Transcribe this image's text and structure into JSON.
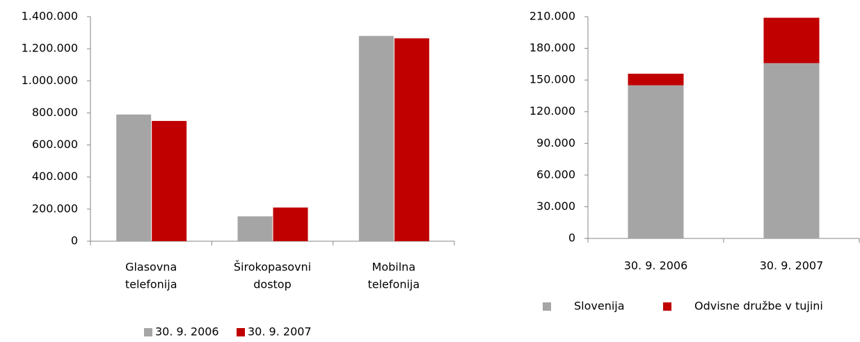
{
  "chart_data": [
    {
      "type": "bar",
      "categories": [
        [
          "Glasovna",
          "telefonija"
        ],
        [
          "Širokopasovni",
          "dostop"
        ],
        [
          "Mobilna",
          "telefonija"
        ]
      ],
      "series": [
        {
          "name": "30. 9. 2006",
          "color": "#a5a5a5",
          "values": [
            790000,
            155000,
            1280000
          ]
        },
        {
          "name": "30. 9. 2007",
          "color": "#c00000",
          "values": [
            750000,
            210000,
            1265000
          ]
        }
      ],
      "ylim": [
        0,
        1400000
      ],
      "yticks": [
        0,
        {
          "value": 200000,
          "label": "200.000"
        },
        {
          "value": 400000,
          "label": "400.000"
        },
        {
          "value": 600000,
          "label": "600.000"
        },
        {
          "value": 800000,
          "label": "800.000"
        },
        {
          "value": 1000000,
          "label": "1.000.000"
        },
        {
          "value": 1200000,
          "label": "1.200.000"
        },
        {
          "value": 1400000,
          "label": "1.400.000"
        }
      ],
      "legend": "bottom"
    },
    {
      "type": "stacked_bar",
      "categories": [
        "30. 9. 2006",
        "30. 9. 2007"
      ],
      "series": [
        {
          "name": "Slovenija",
          "color": "#a5a5a5",
          "values": [
            145000,
            166000
          ]
        },
        {
          "name": "Odvisne družbe v tujini",
          "color": "#c00000",
          "values": [
            11000,
            43000
          ]
        }
      ],
      "ylim": [
        0,
        210000
      ],
      "yticks": [
        0,
        {
          "value": 30000,
          "label": "30.000"
        },
        {
          "value": 60000,
          "label": "60.000"
        },
        {
          "value": 90000,
          "label": "90.000"
        },
        {
          "value": 120000,
          "label": "120.000"
        },
        {
          "value": 150000,
          "label": "150.000"
        },
        {
          "value": 180000,
          "label": "180.000"
        },
        {
          "value": 210000,
          "label": "210.000"
        }
      ],
      "legend": "bottom"
    }
  ]
}
